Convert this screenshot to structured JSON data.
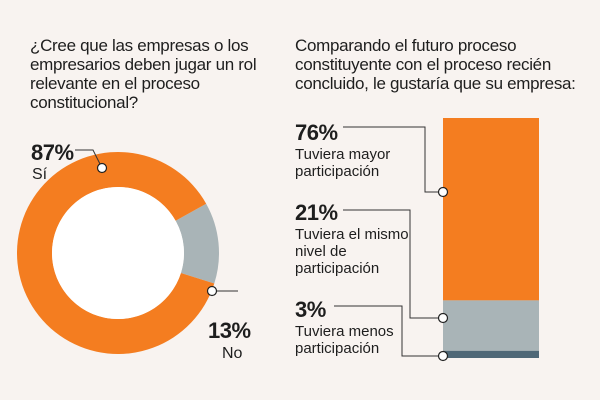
{
  "colors": {
    "orange": "#f47d20",
    "gray": "#a9b4b7",
    "dark": "#4f6877",
    "background": "#f8f3f0"
  },
  "chart_data": [
    {
      "type": "pie",
      "subtype": "donut",
      "title": "¿Cree que las empresas o los empresarios deben jugar un rol relevante en el proceso constitucional?",
      "categories": [
        "Sí",
        "No"
      ],
      "values": [
        87,
        13
      ],
      "labels": [
        "87%",
        "13%"
      ]
    },
    {
      "type": "bar",
      "subtype": "stacked-100",
      "title": "Comparando el futuro proceso constituyente con el proceso recién concluido, le gustaría que su empresa:",
      "categories": [
        "Tuviera mayor participación",
        "Tuviera el mismo nivel de participación",
        "Tuviera menos participación"
      ],
      "values": [
        76,
        21,
        3
      ],
      "labels": [
        "76%",
        "21%",
        "3%"
      ]
    }
  ]
}
